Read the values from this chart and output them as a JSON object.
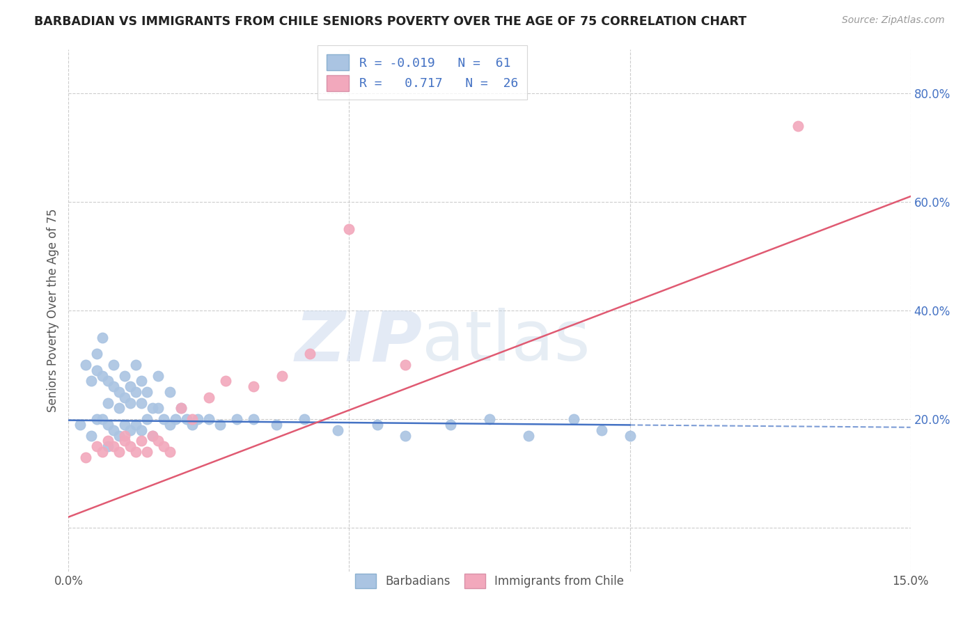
{
  "title": "BARBADIAN VS IMMIGRANTS FROM CHILE SENIORS POVERTY OVER THE AGE OF 75 CORRELATION CHART",
  "source": "Source: ZipAtlas.com",
  "ylabel": "Seniors Poverty Over the Age of 75",
  "xlim": [
    0.0,
    0.15
  ],
  "ylim": [
    -0.08,
    0.88
  ],
  "yticks": [
    0.0,
    0.2,
    0.4,
    0.6,
    0.8
  ],
  "yticklabels": [
    "",
    "20.0%",
    "40.0%",
    "60.0%",
    "80.0%"
  ],
  "xtick_positions": [
    0.0,
    0.05,
    0.1,
    0.15
  ],
  "xticklabels": [
    "0.0%",
    "",
    "",
    "15.0%"
  ],
  "legend_r_blue": "-0.019",
  "legend_n_blue": "61",
  "legend_r_pink": "0.717",
  "legend_n_pink": "26",
  "blue_color": "#aac4e2",
  "pink_color": "#f2a8bc",
  "line_blue_color": "#4472c4",
  "line_pink_color": "#e05a72",
  "watermark_zip": "ZIP",
  "watermark_atlas": "atlas",
  "blue_x": [
    0.002,
    0.003,
    0.004,
    0.004,
    0.005,
    0.005,
    0.005,
    0.006,
    0.006,
    0.006,
    0.007,
    0.007,
    0.007,
    0.007,
    0.008,
    0.008,
    0.008,
    0.009,
    0.009,
    0.009,
    0.01,
    0.01,
    0.01,
    0.011,
    0.011,
    0.011,
    0.012,
    0.012,
    0.012,
    0.013,
    0.013,
    0.013,
    0.014,
    0.014,
    0.015,
    0.015,
    0.016,
    0.016,
    0.017,
    0.018,
    0.018,
    0.019,
    0.02,
    0.021,
    0.022,
    0.023,
    0.025,
    0.027,
    0.03,
    0.033,
    0.037,
    0.042,
    0.048,
    0.055,
    0.06,
    0.068,
    0.075,
    0.082,
    0.09,
    0.095,
    0.1
  ],
  "blue_y": [
    0.19,
    0.3,
    0.27,
    0.17,
    0.32,
    0.29,
    0.2,
    0.35,
    0.28,
    0.2,
    0.27,
    0.23,
    0.19,
    0.15,
    0.3,
    0.26,
    0.18,
    0.25,
    0.22,
    0.17,
    0.28,
    0.24,
    0.19,
    0.26,
    0.23,
    0.18,
    0.3,
    0.25,
    0.19,
    0.27,
    0.23,
    0.18,
    0.25,
    0.2,
    0.22,
    0.17,
    0.28,
    0.22,
    0.2,
    0.25,
    0.19,
    0.2,
    0.22,
    0.2,
    0.19,
    0.2,
    0.2,
    0.19,
    0.2,
    0.2,
    0.19,
    0.2,
    0.18,
    0.19,
    0.17,
    0.19,
    0.2,
    0.17,
    0.2,
    0.18,
    0.17
  ],
  "pink_x": [
    0.003,
    0.005,
    0.006,
    0.007,
    0.008,
    0.009,
    0.01,
    0.01,
    0.011,
    0.012,
    0.013,
    0.014,
    0.015,
    0.016,
    0.017,
    0.018,
    0.02,
    0.022,
    0.025,
    0.028,
    0.033,
    0.038,
    0.043,
    0.05,
    0.06,
    0.13
  ],
  "pink_y": [
    0.13,
    0.15,
    0.14,
    0.16,
    0.15,
    0.14,
    0.17,
    0.16,
    0.15,
    0.14,
    0.16,
    0.14,
    0.17,
    0.16,
    0.15,
    0.14,
    0.22,
    0.2,
    0.24,
    0.27,
    0.26,
    0.28,
    0.32,
    0.55,
    0.3,
    0.74
  ],
  "blue_line_x": [
    0.0,
    0.15
  ],
  "blue_line_y": [
    0.198,
    0.185
  ],
  "blue_line_solid_end": 0.1,
  "pink_line_x": [
    0.0,
    0.15
  ],
  "pink_line_y": [
    0.02,
    0.61
  ]
}
